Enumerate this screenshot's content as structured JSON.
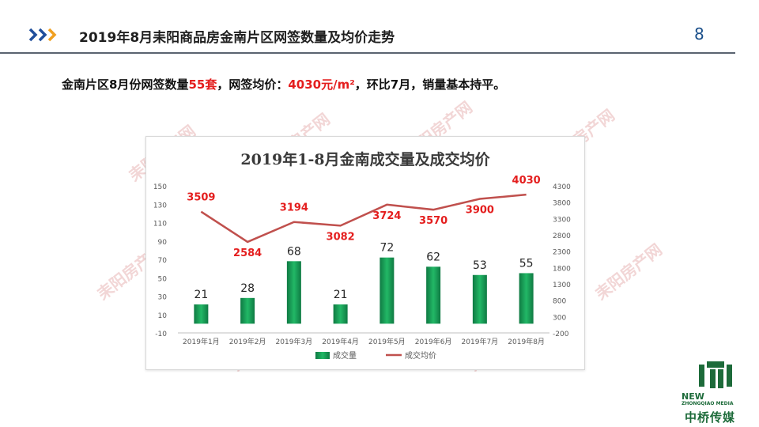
{
  "header": {
    "title": "2019年8月耒阳商品房金南片区网签数量及均价走势",
    "page_number": "8"
  },
  "summary": {
    "part1": "金南片区8月份网签数量",
    "count": "55套",
    "part2": "，网签均价：",
    "price": "4030元/m²",
    "part3": "，环比7月，销量基本持平。"
  },
  "watermark": {
    "text": "耒阳房产网"
  },
  "logo": {
    "new": "NEW",
    "sub": "ZHONGQIAO MEDIA",
    "name": "中桥传媒"
  },
  "colors": {
    "bar": "#1aa05a",
    "line": "#c0504d",
    "price_label": "#e41e1e",
    "accent": "#1f4e9c"
  },
  "chart_data": {
    "type": "bar+line",
    "title": "2019年1-8月金南成交量及成交均价",
    "categories": [
      "2019年1月",
      "2019年2月",
      "2019年3月",
      "2019年4月",
      "2019年5月",
      "2019年6月",
      "2019年7月",
      "2019年8月"
    ],
    "series": [
      {
        "name": "成交量",
        "type": "bar",
        "axis": "left",
        "values": [
          21,
          28,
          68,
          21,
          72,
          62,
          53,
          55
        ]
      },
      {
        "name": "成交均价",
        "type": "line",
        "axis": "right",
        "values": [
          3509,
          2584,
          3194,
          3082,
          3724,
          3570,
          3900,
          4030
        ]
      }
    ],
    "y_left": {
      "min": -10,
      "max": 150,
      "ticks": [
        -10,
        10,
        30,
        50,
        70,
        90,
        110,
        130,
        150
      ]
    },
    "y_right": {
      "min": -200,
      "max": 4300,
      "ticks": [
        -200,
        300,
        800,
        1300,
        1800,
        2300,
        2800,
        3300,
        3800,
        4300
      ]
    },
    "grid": false,
    "legend": "bottom"
  }
}
